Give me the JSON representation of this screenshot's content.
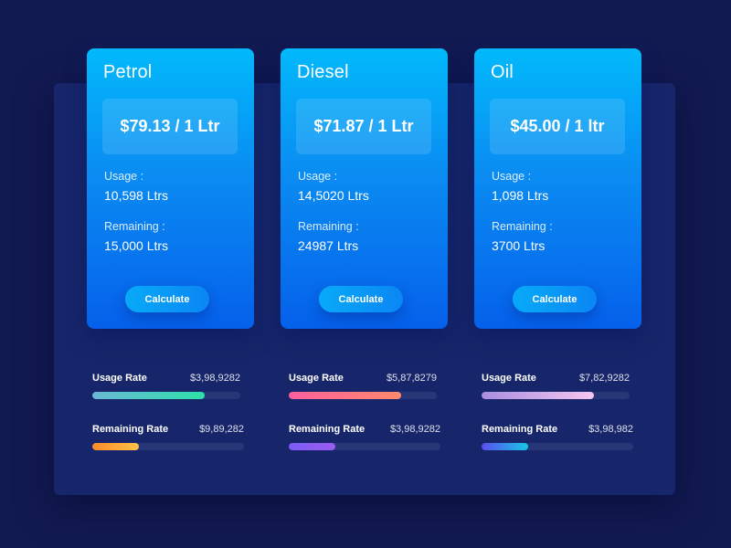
{
  "cards": [
    {
      "title": "Petrol",
      "price": "$79.13 / 1 Ltr",
      "usage_label": "Usage :",
      "usage_value": "10,598 Ltrs",
      "remaining_label": "Remaining :",
      "remaining_value": "15,000 Ltrs",
      "button_label": "Calculate"
    },
    {
      "title": "Diesel",
      "price": "$71.87 / 1 Ltr",
      "usage_label": "Usage :",
      "usage_value": "14,5020 Ltrs",
      "remaining_label": "Remaining :",
      "remaining_value": "24987 Ltrs",
      "button_label": "Calculate"
    },
    {
      "title": "Oil",
      "price": "$45.00 / 1 ltr",
      "usage_label": "Usage :",
      "usage_value": "1,098 Ltrs",
      "remaining_label": "Remaining :",
      "remaining_value": "3700 Ltrs",
      "button_label": "Calculate"
    }
  ],
  "rates": [
    {
      "usage": {
        "label": "Usage Rate",
        "value": "$3,98,9282",
        "progress": 0.76,
        "colors": [
          "#6bb8d6",
          "#2ee0a8"
        ]
      },
      "remaining": {
        "label": "Remaining Rate",
        "value": "$9,89,282",
        "progress": 0.31,
        "colors": [
          "#ff8a2b",
          "#ffc247"
        ]
      }
    },
    {
      "usage": {
        "label": "Usage Rate",
        "value": "$5,87,8279",
        "progress": 0.76,
        "colors": [
          "#ff5f9e",
          "#ff8a6b"
        ]
      },
      "remaining": {
        "label": "Remaining Rate",
        "value": "$3,98,9282",
        "progress": 0.31,
        "colors": [
          "#7a5cf5",
          "#9b5cf0"
        ]
      }
    },
    {
      "usage": {
        "label": "Usage Rate",
        "value": "$7,82,9282",
        "progress": 0.76,
        "colors": [
          "#a98ee0",
          "#f6c6f0"
        ]
      },
      "remaining": {
        "label": "Remaining Rate",
        "value": "$3,98,982",
        "progress": 0.31,
        "colors": [
          "#5a4df0",
          "#16c8e6"
        ]
      }
    }
  ],
  "colors": {
    "background": "#121a52",
    "panel": "#17266a",
    "track": "#263677",
    "card_gradient_top": "#02b9fb",
    "card_gradient_bottom": "#0560ea"
  }
}
